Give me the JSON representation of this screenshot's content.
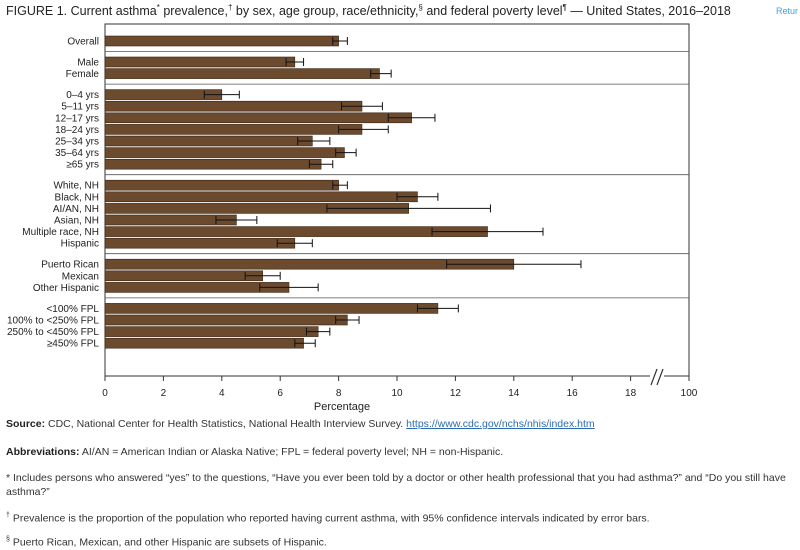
{
  "title": {
    "text": "FIGURE 1. Current asthma",
    "mark1": "*",
    "text2": " prevalence,",
    "mark2": "†",
    "text3": " by sex, age group, race/ethnicity,",
    "mark3": "§",
    "text4": " and federal poverty level",
    "mark4": "¶",
    "text5": " — United States, 2016–2018"
  },
  "return_link": "Retur",
  "chart_data": {
    "type": "bar",
    "orientation": "horizontal",
    "xlabel": "Percentage",
    "xlim": [
      0,
      20
    ],
    "x_ticks": [
      "0",
      "2",
      "4",
      "6",
      "8",
      "10",
      "12",
      "14",
      "16",
      "18",
      "100"
    ],
    "axis_break": true,
    "grid": false,
    "bar_color": "#6b4a2e",
    "categories": [
      "Overall",
      "Male",
      "Female",
      "0–4 yrs",
      "5–11 yrs",
      "12–17 yrs",
      "18–24 yrs",
      "25–34 yrs",
      "35–64 yrs",
      "≥65 yrs",
      "White, NH",
      "Black, NH",
      "AI/AN, NH",
      "Asian, NH",
      "Multiple race, NH",
      "Hispanic",
      "Puerto Rican",
      "Mexican",
      "Other Hispanic",
      "<100% FPL",
      "100% to <250% FPL",
      "250% to <450% FPL",
      "≥450% FPL"
    ],
    "groups": [
      1,
      2,
      2,
      3,
      3,
      3,
      3,
      3,
      3,
      3,
      4,
      4,
      4,
      4,
      4,
      4,
      5,
      5,
      5,
      6,
      6,
      6,
      6
    ],
    "values": [
      8.0,
      6.5,
      9.4,
      4.0,
      8.8,
      10.5,
      8.8,
      7.1,
      8.2,
      7.4,
      8.0,
      10.7,
      10.4,
      4.5,
      13.1,
      6.5,
      14.0,
      5.4,
      6.3,
      11.4,
      8.3,
      7.3,
      6.8
    ],
    "ci_low": [
      7.8,
      6.2,
      9.1,
      3.4,
      8.1,
      9.7,
      8.0,
      6.6,
      7.9,
      7.0,
      7.8,
      10.0,
      7.6,
      3.8,
      11.2,
      5.9,
      11.7,
      4.8,
      5.3,
      10.7,
      7.9,
      6.9,
      6.5
    ],
    "ci_high": [
      8.3,
      6.8,
      9.8,
      4.6,
      9.5,
      11.3,
      9.7,
      7.7,
      8.6,
      7.8,
      8.3,
      11.4,
      13.2,
      5.2,
      15.0,
      7.1,
      16.3,
      6.0,
      7.3,
      12.1,
      8.7,
      7.7,
      7.2
    ]
  },
  "notes": {
    "source_label": "Source:",
    "source_text": " CDC, National Center for Health Statistics, National Health Interview Survey. ",
    "source_url": "https://www.cdc.gov/nchs/nhis/index.htm",
    "abbrev_label": "Abbreviations:",
    "abbrev_text": " AI/AN = American Indian or Alaska Native; FPL = federal poverty level; NH = non-Hispanic.",
    "fn1_mark": "*",
    "fn1_text": " Includes persons who answered “yes” to the questions, “Have you ever been told by a doctor or other health professional that you had asthma?” and “Do you still have asthma?”",
    "fn2_mark": "†",
    "fn2_text": " Prevalence is the proportion of the population who reported having current asthma, with 95% confidence intervals indicated by error bars.",
    "fn3_mark": "§",
    "fn3_text": " Puerto Rican, Mexican, and other Hispanic are subsets of Hispanic."
  }
}
